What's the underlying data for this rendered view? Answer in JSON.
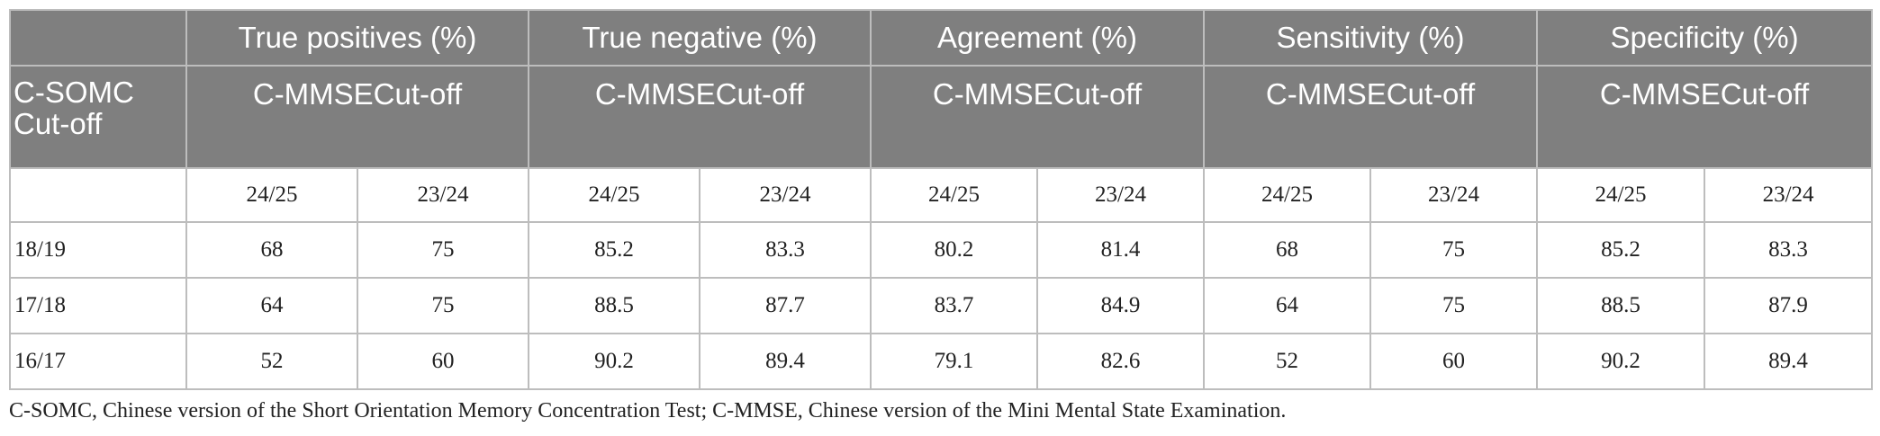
{
  "corner_label": "C-SOMC Cut-off",
  "group_headers": [
    "True positives (%)",
    "True negative (%)",
    "Agreement (%)",
    "Sensitivity (%)",
    "Specificity (%)"
  ],
  "sub_header": "C-MMSECut-off",
  "cutoff_columns": [
    "24/25",
    "23/24"
  ],
  "rows": [
    {
      "cutoff": "18/19",
      "values": [
        "68",
        "75",
        "85.2",
        "83.3",
        "80.2",
        "81.4",
        "68",
        "75",
        "85.2",
        "83.3"
      ]
    },
    {
      "cutoff": "17/18",
      "values": [
        "64",
        "75",
        "88.5",
        "87.7",
        "83.7",
        "84.9",
        "64",
        "75",
        "88.5",
        "87.9"
      ]
    },
    {
      "cutoff": "16/17",
      "values": [
        "52",
        "60",
        "90.2",
        "89.4",
        "79.1",
        "82.6",
        "52",
        "60",
        "90.2",
        "89.4"
      ]
    }
  ],
  "footnote": "C-SOMC, Chinese version of the Short Orientation Memory Concentration Test; C-MMSE, Chinese version of the Mini Mental State Examination."
}
